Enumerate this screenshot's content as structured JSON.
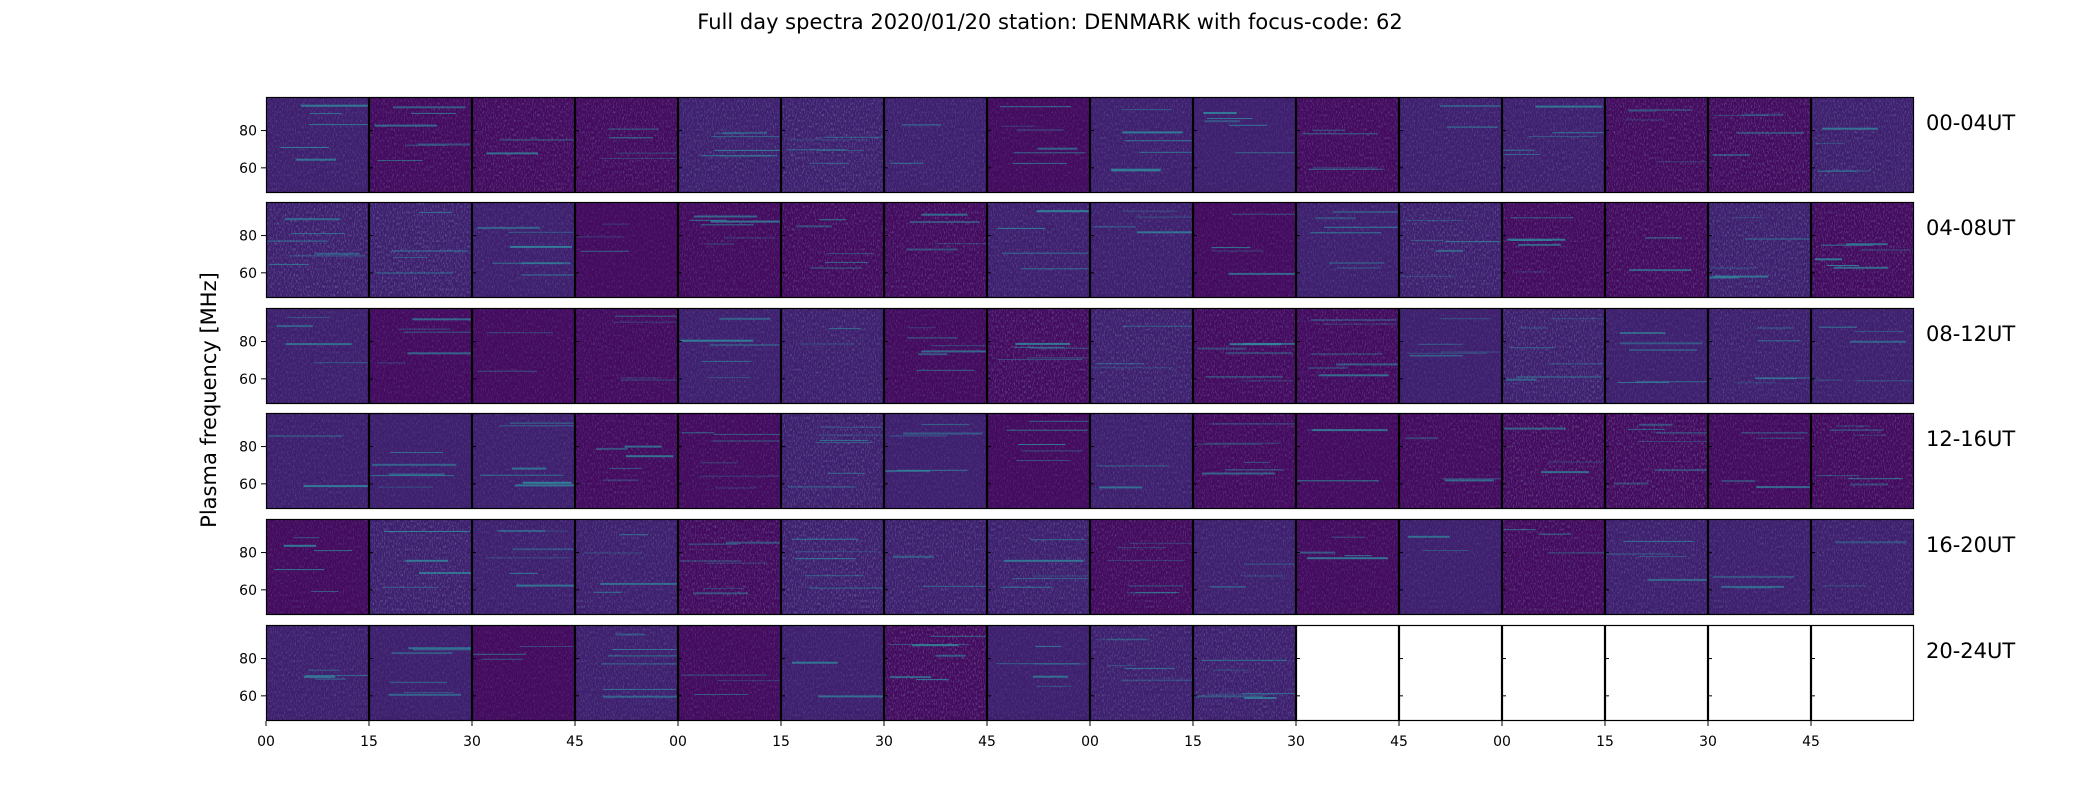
{
  "chart_data": {
    "type": "heatmap",
    "title": "Full day spectra 2020/01/20 station: DENMARK with focus-code: 62",
    "ylabel": "Plasma frequency [MHz]",
    "xlabel": "",
    "y_ticks": [
      "80",
      "60"
    ],
    "y_tick_values": [
      80,
      60
    ],
    "x_ticks": [
      "00",
      "15",
      "30",
      "45",
      "00",
      "15",
      "30",
      "45",
      "00",
      "15",
      "30",
      "45",
      "00",
      "15",
      "30",
      "45"
    ],
    "colormap": "viridis",
    "panels_per_row": 16,
    "rows": [
      {
        "label": "00-04UT",
        "panels_with_data": 16
      },
      {
        "label": "04-08UT",
        "panels_with_data": 16
      },
      {
        "label": "08-12UT",
        "panels_with_data": 16
      },
      {
        "label": "12-16UT",
        "panels_with_data": 16
      },
      {
        "label": "16-20UT",
        "panels_with_data": 16
      },
      {
        "label": "20-24UT",
        "panels_with_data": 10
      }
    ]
  },
  "colors": {
    "background_dark": "#440a5e",
    "background_mid": "#3e1f6e",
    "speckle": "#3b528b",
    "streak": "#2f8fa0",
    "empty_panel": "#ffffff"
  }
}
